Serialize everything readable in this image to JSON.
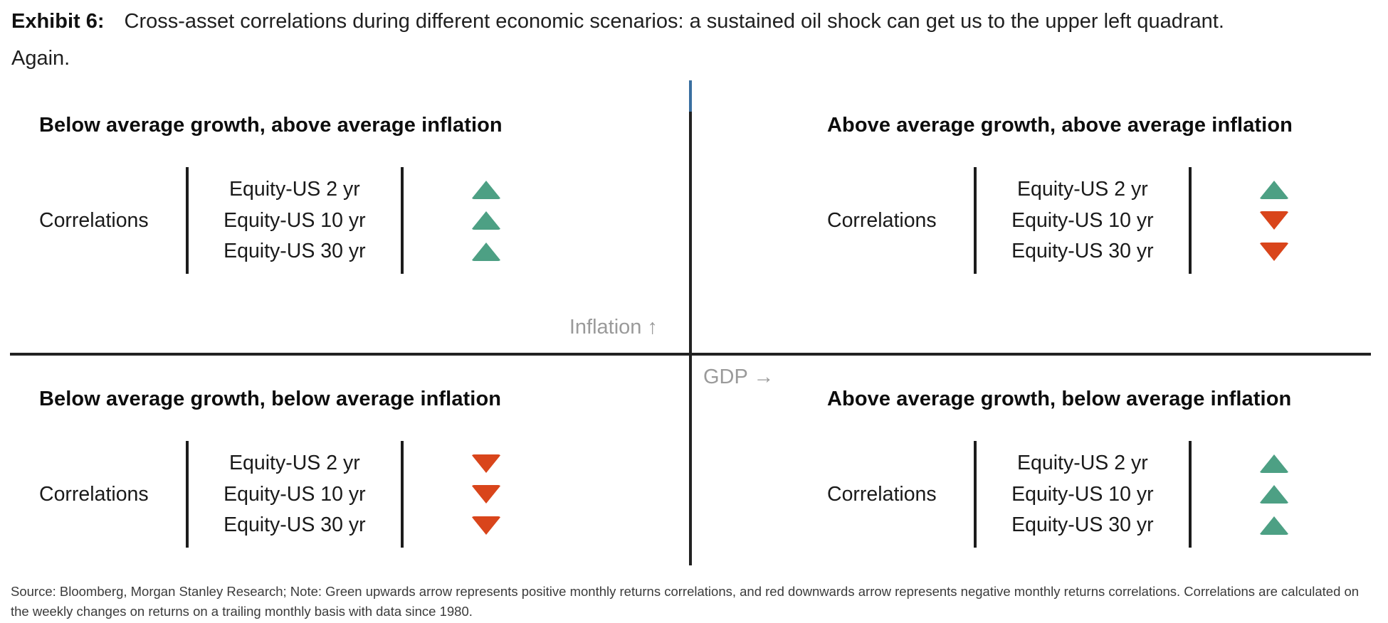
{
  "header": {
    "exhibit_label": "Exhibit 6:",
    "title": "Cross-asset correlations during different economic scenarios: a sustained oil shock can get us to the upper left quadrant.",
    "title_line2": "Again."
  },
  "axes": {
    "y_label": "Inflation ↑",
    "x_label": "GDP →"
  },
  "colors": {
    "up": "#4da084",
    "down": "#d9451b",
    "axis": "#222222",
    "axis_tip": "#3a6fa0",
    "axis_label": "#9a9a9a"
  },
  "quadrants": [
    {
      "id": "top-left",
      "heading": "Below average growth, above average inflation",
      "row_label": "Correlations",
      "rows": [
        {
          "label": "Equity-US 2 yr",
          "direction": "up"
        },
        {
          "label": "Equity-US 10 yr",
          "direction": "up"
        },
        {
          "label": "Equity-US 30 yr",
          "direction": "up"
        }
      ]
    },
    {
      "id": "top-right",
      "heading": "Above average growth, above average inflation",
      "row_label": "Correlations",
      "rows": [
        {
          "label": "Equity-US 2 yr",
          "direction": "up"
        },
        {
          "label": "Equity-US 10 yr",
          "direction": "down"
        },
        {
          "label": "Equity-US 30 yr",
          "direction": "down"
        }
      ]
    },
    {
      "id": "bottom-left",
      "heading": "Below average growth, below average inflation",
      "row_label": "Correlations",
      "rows": [
        {
          "label": "Equity-US 2 yr",
          "direction": "down"
        },
        {
          "label": "Equity-US 10 yr",
          "direction": "down"
        },
        {
          "label": "Equity-US 30 yr",
          "direction": "down"
        }
      ]
    },
    {
      "id": "bottom-right",
      "heading": "Above average growth, below average inflation",
      "row_label": "Correlations",
      "rows": [
        {
          "label": "Equity-US 2 yr",
          "direction": "up"
        },
        {
          "label": "Equity-US 10 yr",
          "direction": "up"
        },
        {
          "label": "Equity-US 30 yr",
          "direction": "up"
        }
      ]
    }
  ],
  "footer": {
    "text": "Source: Bloomberg, Morgan Stanley Research; Note: Green upwards arrow represents positive monthly returns correlations, and red downwards arrow represents negative monthly returns correlations. Correlations are calculated on the weekly changes on returns on a trailing monthly basis with data since 1980."
  }
}
